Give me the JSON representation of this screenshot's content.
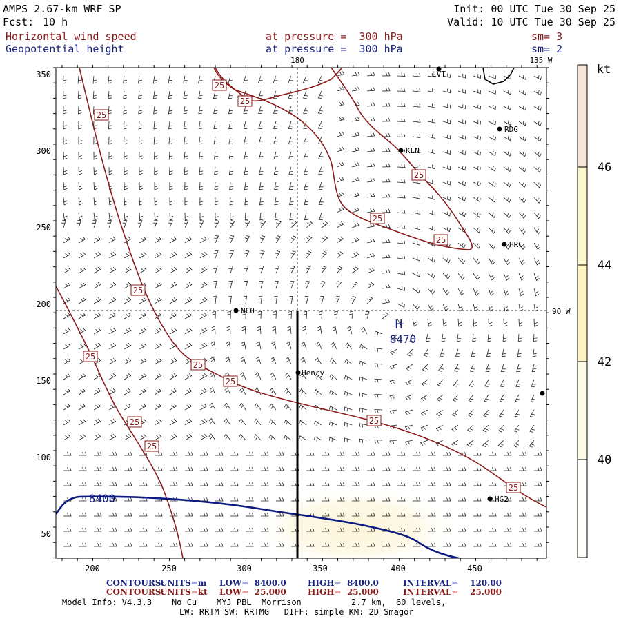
{
  "header": {
    "model": "AMPS 2.67-km WRF SP",
    "fcst_label": "Fcst:",
    "fcst_value": "10 h",
    "init": "Init: 00 UTC Tue 30 Sep 25",
    "valid": "Valid: 10 UTC Tue 30 Sep 25",
    "field1": "Horizontal wind speed",
    "field1_level": "at pressure =  300 hPa",
    "field1_sm": "sm= 3",
    "field2": "Geopotential height",
    "field2_level": "at pressure =  300 hPa",
    "field2_sm": "sm= 2"
  },
  "map": {
    "x_ticks": [
      "200",
      "250",
      "300",
      "350",
      "400",
      "450"
    ],
    "y_ticks": [
      "350",
      "300",
      "250",
      "200",
      "150",
      "100",
      "50"
    ],
    "lon_180": "180",
    "lon_135w": "135 W",
    "lon_90w": "90 W",
    "height_label": "8400",
    "high_symbol": "H",
    "high_value": "8470",
    "wind_label": "25",
    "stations": [
      {
        "name": "LVT"
      },
      {
        "name": "RDG"
      },
      {
        "name": "KLN"
      },
      {
        "name": "HRC"
      },
      {
        "name": "NCO"
      },
      {
        "name": "Henry"
      },
      {
        "name": "HG2"
      },
      {
        "name": ""
      }
    ]
  },
  "colorbar": {
    "unit": "kt",
    "labels": [
      "46",
      "44",
      "42",
      "40"
    ],
    "colors": [
      "#f3e6d8",
      "#fdf6cc",
      "#fcf3c0",
      "#fdfbe6"
    ]
  },
  "footer": {
    "c1_label": "CONTOURS:",
    "c1_units": "UNITS=m",
    "c1_low": "LOW=  8400.0",
    "c1_high": "HIGH=  8400.0",
    "c1_int": "INTERVAL=    120.00",
    "c2_label": "CONTOURS:",
    "c2_units": "UNITS=kt",
    "c2_low": "LOW=  25.000",
    "c2_high": "HIGH=  25.000",
    "c2_int": "INTERVAL=    25.000",
    "model_info": "Model Info: V4.3.3    No Cu    MYJ PBL  Morrison          2.7 km,  60 levels,",
    "model_info2": "LW: RRTM SW: RRTMG   DIFF: simple KM: 2D Smagor"
  },
  "colors": {
    "wind_contour": "#8b1a1a",
    "height_contour": "#0d1a80",
    "text_red": "#8b1a1a",
    "text_blue": "#1a237e"
  }
}
